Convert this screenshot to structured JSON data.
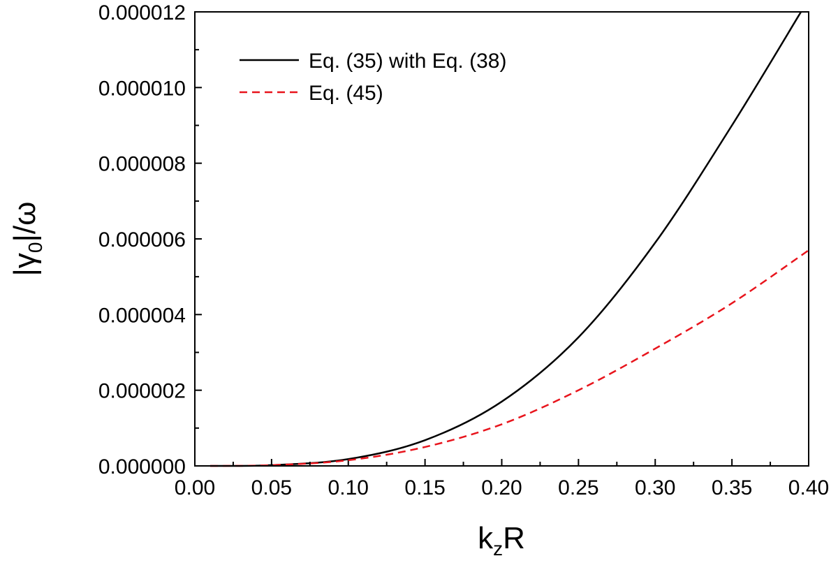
{
  "chart_data": {
    "type": "line",
    "title": "",
    "xlabel": {
      "main": "k",
      "sub": "z",
      "tail": "R"
    },
    "ylabel": {
      "pre": "|γ",
      "sub": "0",
      "post": "|/ω"
    },
    "xlim": [
      0.0,
      0.4
    ],
    "ylim": [
      0.0,
      1.2e-05
    ],
    "x_ticks": [
      0.0,
      0.05,
      0.1,
      0.15,
      0.2,
      0.25,
      0.3,
      0.35,
      0.4
    ],
    "x_tick_labels": [
      "0.00",
      "0.05",
      "0.10",
      "0.15",
      "0.20",
      "0.25",
      "0.30",
      "0.35",
      "0.40"
    ],
    "y_ticks": [
      0.0,
      2e-06,
      4e-06,
      6e-06,
      8e-06,
      1e-05,
      1.2e-05
    ],
    "y_tick_labels": [
      "0.000000",
      "0.000002",
      "0.000004",
      "0.000006",
      "0.000008",
      "0.000010",
      "0.000012"
    ],
    "grid": false,
    "legend_position": "top-left",
    "series": [
      {
        "name": "Eq. (35) with Eq. (38)",
        "color": "#000000",
        "dash": "solid",
        "x": [
          0.01,
          0.05,
          0.1,
          0.15,
          0.2,
          0.25,
          0.3,
          0.35,
          0.395
        ],
        "y": [
          0.0,
          2e-08,
          1.8e-07,
          6.8e-07,
          1.7e-06,
          3.4e-06,
          5.9e-06,
          9e-06,
          1.2e-05
        ]
      },
      {
        "name": "Eq. (45)",
        "color": "#e8141c",
        "dash": "dashed",
        "x": [
          0.01,
          0.05,
          0.1,
          0.15,
          0.2,
          0.25,
          0.3,
          0.35,
          0.4
        ],
        "y": [
          0.0,
          2e-08,
          1.5e-07,
          5e-07,
          1.1e-06,
          2e-06,
          3.1e-06,
          4.3e-06,
          5.7e-06
        ]
      }
    ]
  }
}
